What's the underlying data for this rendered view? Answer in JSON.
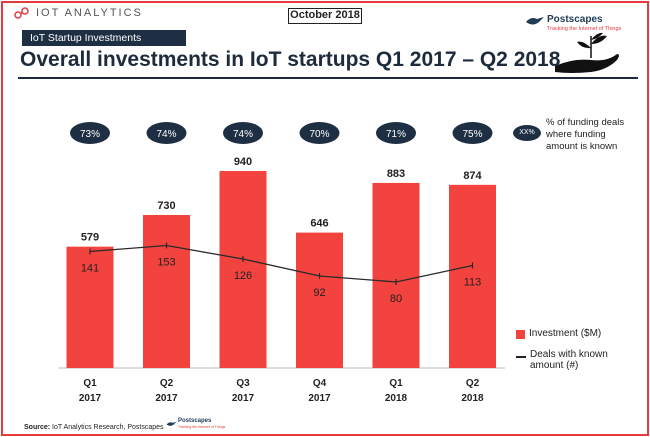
{
  "header": {
    "brand": "IOT ANALYTICS",
    "date_label": "October 2018",
    "partner_name": "Postscapes",
    "partner_tagline": "Tracking the Internet of Things",
    "section_tag": "IoT Startup Investments",
    "title": "Overall investments in IoT startups Q1 2017 – Q2 2018"
  },
  "legend": {
    "pct_badge": "XX%",
    "pct_note": "% of funding deals where funding amount is known",
    "investment": "Investment ($M)",
    "deals": "Deals with known amount (#)"
  },
  "footer": {
    "source_label": "Source:",
    "source_text": "IoT Analytics Research, Postscapes",
    "partner_name": "Postscapes",
    "partner_tagline": "Tracking the Internet of Things"
  },
  "colors": {
    "bar": "#f2433f",
    "badge": "#1e2f44",
    "line": "#2a2a2a",
    "accent": "#e8393f"
  },
  "chart_data": {
    "type": "bar",
    "categories": [
      "Q1 2017",
      "Q2 2017",
      "Q3 2017",
      "Q4 2017",
      "Q1 2018",
      "Q2 2018"
    ],
    "category_lines": [
      [
        "Q1",
        "2017"
      ],
      [
        "Q2",
        "2017"
      ],
      [
        "Q3",
        "2017"
      ],
      [
        "Q4",
        "2017"
      ],
      [
        "Q1",
        "2018"
      ],
      [
        "Q2",
        "2018"
      ]
    ],
    "series": [
      {
        "name": "Investment ($M)",
        "type": "bar",
        "values": [
          579,
          730,
          940,
          646,
          883,
          874
        ]
      },
      {
        "name": "Deals with known amount (#)",
        "type": "line",
        "values": [
          141,
          153,
          126,
          92,
          80,
          113
        ]
      }
    ],
    "pct_known": [
      "73%",
      "74%",
      "74%",
      "70%",
      "71%",
      "75%"
    ],
    "legend_position": "right",
    "grid": false
  }
}
